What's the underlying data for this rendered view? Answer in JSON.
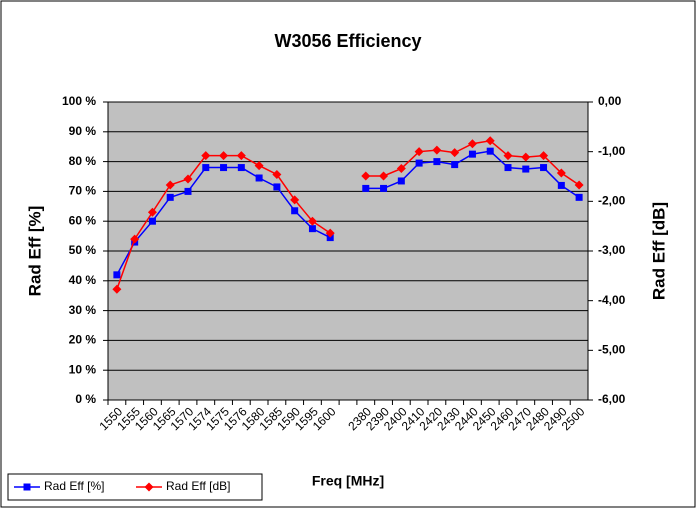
{
  "chart_data": {
    "type": "line",
    "title": "W3056 Efficiency",
    "x_label": "Freq [MHz]",
    "y_label": "Rad Eff [%]",
    "y2_label": "Rad Eff [dB]",
    "categories": [
      "1550",
      "1555",
      "1560",
      "1565",
      "1570",
      "1574",
      "1575",
      "1576",
      "1580",
      "1585",
      "1590",
      "1595",
      "1600",
      null,
      "2380",
      "2390",
      "2400",
      "2410",
      "2420",
      "2430",
      "2440",
      "2450",
      "2460",
      "2470",
      "2480",
      "2490",
      "2500"
    ],
    "series": [
      {
        "name": "Rad Eff [%]",
        "color": "#0000ff",
        "marker": "square",
        "values": [
          42,
          53,
          60,
          68,
          70,
          78,
          78,
          78,
          74.5,
          71.5,
          63.5,
          57.5,
          54.5,
          null,
          71,
          71,
          73.5,
          79.5,
          80,
          79,
          82.5,
          83.5,
          78,
          77.5,
          78,
          72,
          68
        ]
      },
      {
        "name": "Rad Eff [dB]",
        "color": "#ff0000",
        "marker": "diamond",
        "axis": "y2",
        "values": [
          -3.77,
          -2.76,
          -2.22,
          -1.67,
          -1.55,
          -1.08,
          -1.08,
          -1.08,
          -1.28,
          -1.46,
          -1.97,
          -2.4,
          -2.64,
          null,
          -1.49,
          -1.49,
          -1.34,
          -1,
          -0.97,
          -1.02,
          -0.84,
          -0.78,
          -1.08,
          -1.11,
          -1.08,
          -1.43,
          -1.67
        ]
      }
    ],
    "ylim": [
      0,
      100
    ],
    "yticks": [
      {
        "value": 0,
        "label": "0 %"
      },
      {
        "value": 10,
        "label": "10 %"
      },
      {
        "value": 20,
        "label": "20 %"
      },
      {
        "value": 30,
        "label": "30 %"
      },
      {
        "value": 40,
        "label": "40 %"
      },
      {
        "value": 50,
        "label": "50 %"
      },
      {
        "value": 60,
        "label": "60 %"
      },
      {
        "value": 70,
        "label": "70 %"
      },
      {
        "value": 80,
        "label": "80 %"
      },
      {
        "value": 90,
        "label": "90 %"
      },
      {
        "value": 100,
        "label": "100 %"
      }
    ],
    "y2lim": [
      -6,
      0
    ],
    "y2ticks": [
      {
        "value": -6,
        "label": "-6,00"
      },
      {
        "value": -5,
        "label": "-5,00"
      },
      {
        "value": -4,
        "label": "-4,00"
      },
      {
        "value": -3,
        "label": "-3,00"
      },
      {
        "value": -2,
        "label": "-2,00"
      },
      {
        "value": -1,
        "label": "-1,00"
      },
      {
        "value": 0,
        "label": "0,00"
      }
    ],
    "grid": true,
    "legend": "bottom-left"
  }
}
